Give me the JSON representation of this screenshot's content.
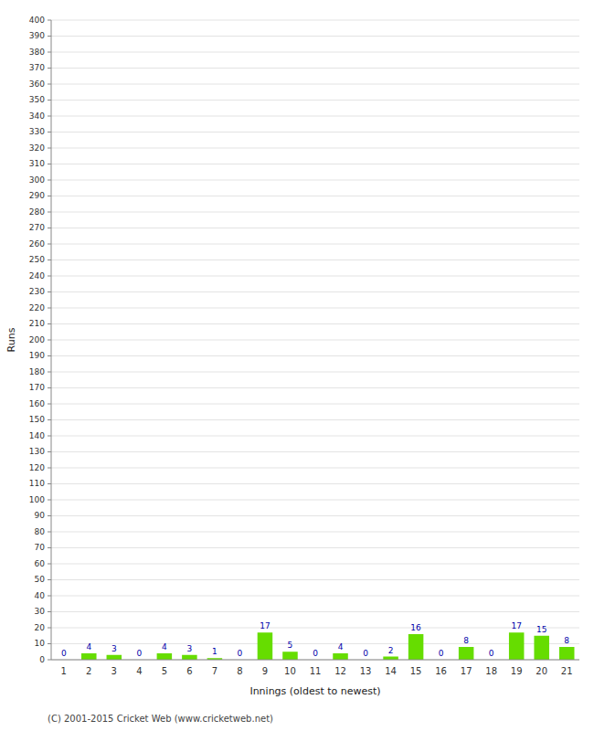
{
  "chart_data": {
    "type": "bar",
    "xlabel": "Innings (oldest to newest)",
    "ylabel": "Runs",
    "footer": "(C) 2001-2015 Cricket Web (www.cricketweb.net)",
    "categories": [
      "1",
      "2",
      "3",
      "4",
      "5",
      "6",
      "7",
      "8",
      "9",
      "10",
      "11",
      "12",
      "13",
      "14",
      "15",
      "16",
      "17",
      "18",
      "19",
      "20",
      "21"
    ],
    "values": [
      0,
      4,
      3,
      0,
      4,
      3,
      1,
      0,
      17,
      5,
      0,
      4,
      0,
      2,
      16,
      0,
      8,
      0,
      17,
      15,
      8
    ],
    "color": "#66dd00",
    "ylim": [
      0,
      400
    ],
    "yticks": [
      0,
      10,
      20,
      30,
      40,
      50,
      60,
      70,
      80,
      90,
      100,
      110,
      120,
      130,
      140,
      150,
      160,
      170,
      180,
      190,
      200,
      210,
      220,
      230,
      240,
      250,
      260,
      270,
      280,
      290,
      300,
      310,
      320,
      330,
      340,
      350,
      360,
      370,
      380,
      390,
      400
    ],
    "grid": true,
    "data_labels": true
  }
}
